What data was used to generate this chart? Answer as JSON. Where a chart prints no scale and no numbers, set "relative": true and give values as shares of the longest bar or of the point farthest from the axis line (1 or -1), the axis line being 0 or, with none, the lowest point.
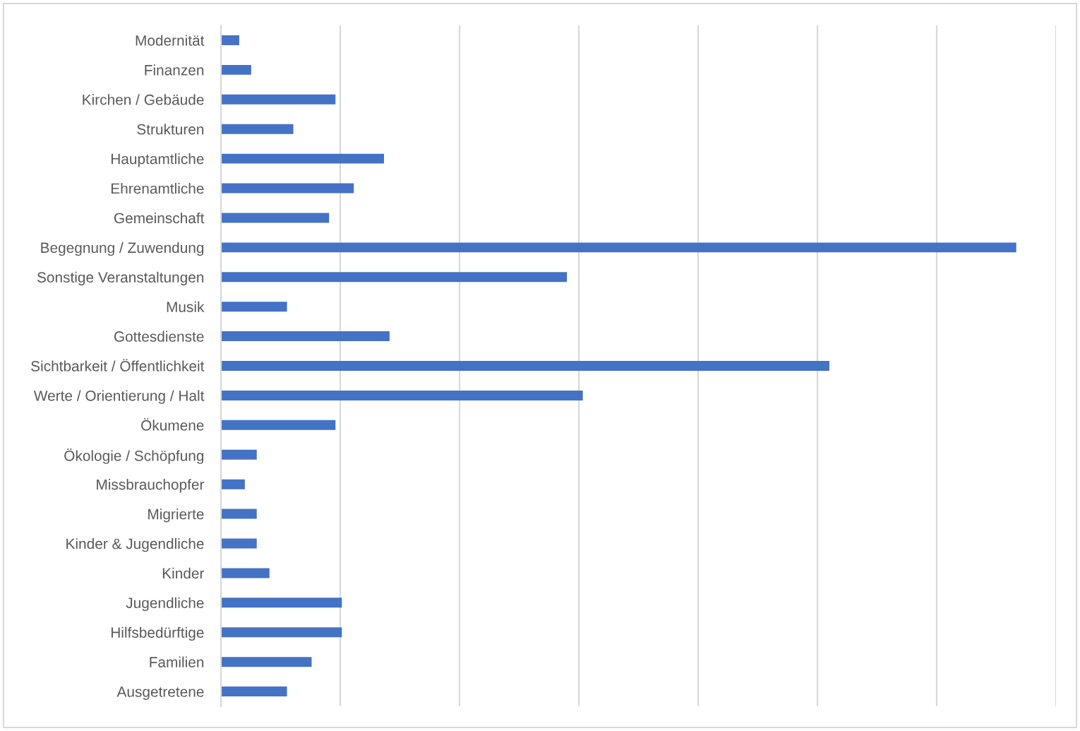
{
  "chart_data": {
    "type": "bar",
    "orientation": "horizontal",
    "relative": true,
    "categories": [
      "Modernität",
      "Finanzen",
      "Kirchen / Gebäude",
      "Strukturen",
      "Hauptamtliche",
      "Ehrenamtliche",
      "Gemeinschaft",
      "Begegnung / Zuwendung",
      "Sonstige Veranstaltungen",
      "Musik",
      "Gottesdienste",
      "Sichtbarkeit / Öffentlichkeit",
      "Werte / Orientierung / Halt",
      "Ökumene",
      "Ökologie / Schöpfung",
      "Missbrauchopfer",
      "Migrierte",
      "Kinder & Jugendliche",
      "Kinder",
      "Jugendliche",
      "Hilfsbedürftige",
      "Familien",
      "Ausgetretene"
    ],
    "values": [
      0.023,
      0.038,
      0.144,
      0.091,
      0.205,
      0.167,
      0.136,
      1,
      0.435,
      0.083,
      0.212,
      0.765,
      0.455,
      0.144,
      0.045,
      0.03,
      0.045,
      0.045,
      0.061,
      0.152,
      0.152,
      0.114,
      0.083
    ],
    "color": "#4472c4",
    "grid": "x",
    "tick_labels": "y"
  }
}
